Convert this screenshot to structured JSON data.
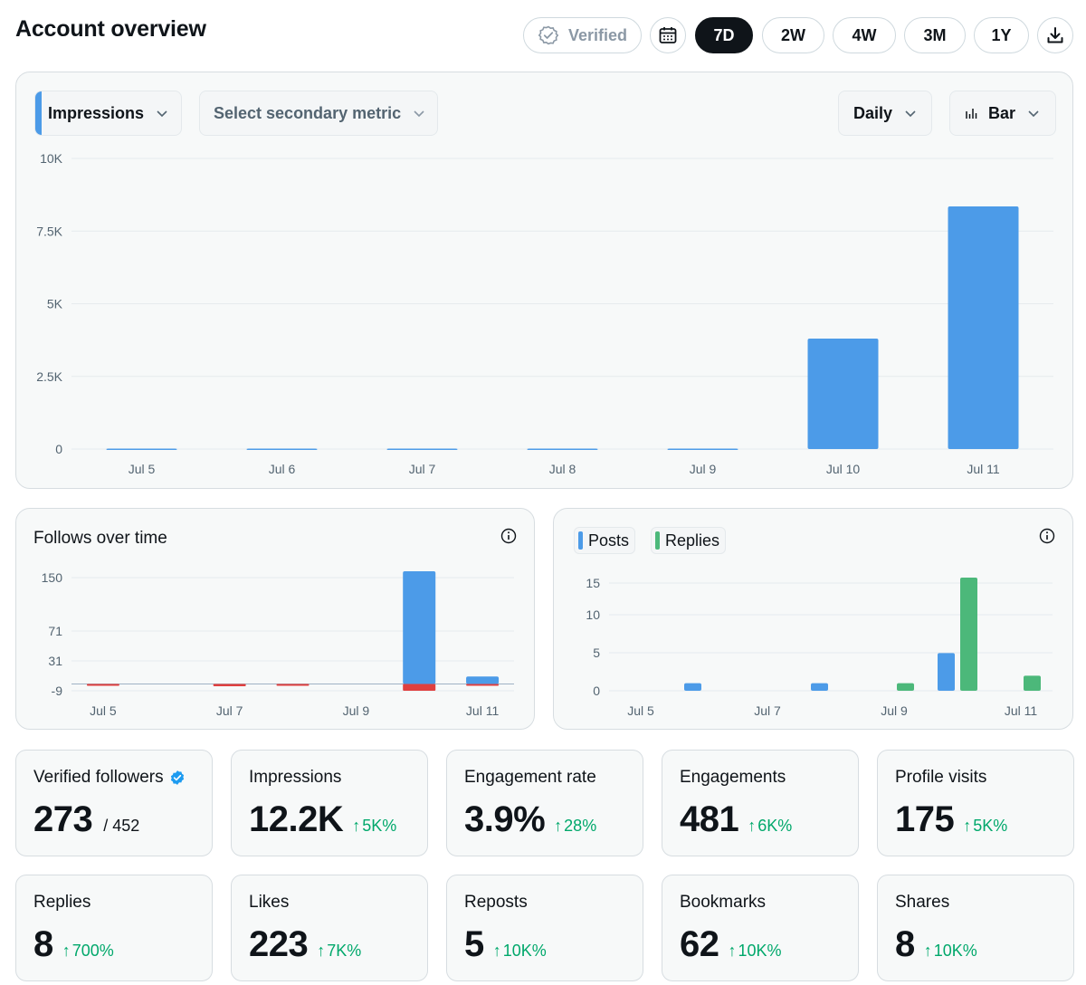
{
  "header": {
    "title": "Account overview",
    "verified_label": "Verified",
    "ranges": [
      "7D",
      "2W",
      "4W",
      "3M",
      "1Y"
    ],
    "active_range": "7D"
  },
  "main_chart": {
    "primary_metric": "Impressions",
    "secondary_metric_placeholder": "Select secondary metric",
    "granularity": "Daily",
    "chart_style": "Bar"
  },
  "follows_card": {
    "title": "Follows over time"
  },
  "posts_card": {
    "legend": [
      "Posts",
      "Replies"
    ]
  },
  "stats": [
    {
      "label": "Verified followers",
      "value": "273",
      "sub": "/ 452",
      "verified_badge": true
    },
    {
      "label": "Impressions",
      "value": "12.2K",
      "change": "5K%"
    },
    {
      "label": "Engagement rate",
      "value": "3.9%",
      "change": "28%"
    },
    {
      "label": "Engagements",
      "value": "481",
      "change": "6K%"
    },
    {
      "label": "Profile visits",
      "value": "175",
      "change": "5K%"
    },
    {
      "label": "Replies",
      "value": "8",
      "change": "700%"
    },
    {
      "label": "Likes",
      "value": "223",
      "change": "7K%"
    },
    {
      "label": "Reposts",
      "value": "5",
      "change": "10K%"
    },
    {
      "label": "Bookmarks",
      "value": "62",
      "change": "10K%"
    },
    {
      "label": "Shares",
      "value": "8",
      "change": "10K%"
    }
  ],
  "colors": {
    "blue": "#4c9be8",
    "red": "#e0403f",
    "green": "#4cb87a",
    "positive": "#00a86b"
  },
  "chart_data": [
    {
      "type": "bar",
      "categories": [
        "Jul 5",
        "Jul 6",
        "Jul 7",
        "Jul 8",
        "Jul 9",
        "Jul 10",
        "Jul 11"
      ],
      "series": [
        {
          "name": "Impressions",
          "values": [
            15,
            15,
            15,
            15,
            15,
            3800,
            8350
          ]
        }
      ],
      "yticks": [
        "0",
        "2.5K",
        "5K",
        "7.5K",
        "10K"
      ],
      "ylim": [
        0,
        10000
      ]
    },
    {
      "type": "bar",
      "title": "Follows over time",
      "categories": [
        "Jul 5",
        "Jul 6",
        "Jul 7",
        "Jul 8",
        "Jul 9",
        "Jul 10",
        "Jul 11"
      ],
      "xticklabels": [
        "Jul 5",
        "Jul 7",
        "Jul 9",
        "Jul 11"
      ],
      "series": [
        {
          "values": [
            0,
            0,
            0,
            0,
            0,
            150,
            10
          ]
        },
        {
          "values": [
            -2,
            0,
            -3,
            -1,
            0,
            -9,
            -1
          ]
        }
      ],
      "yticks": [
        "-9",
        "31",
        "71",
        "150"
      ],
      "ylim": [
        -9,
        150
      ]
    },
    {
      "type": "bar",
      "categories": [
        "Jul 5",
        "Jul 6",
        "Jul 7",
        "Jul 8",
        "Jul 9",
        "Jul 10",
        "Jul 11"
      ],
      "xticklabels": [
        "Jul 5",
        "Jul 7",
        "Jul 9",
        "Jul 11"
      ],
      "series": [
        {
          "name": "Posts",
          "values": [
            0,
            1,
            0,
            1,
            0,
            5,
            0
          ]
        },
        {
          "name": "Replies",
          "values": [
            0,
            0,
            0,
            0,
            1,
            15,
            2
          ]
        }
      ],
      "yticks": [
        "0",
        "5",
        "10",
        "15"
      ],
      "ylim": [
        0,
        15
      ]
    }
  ]
}
